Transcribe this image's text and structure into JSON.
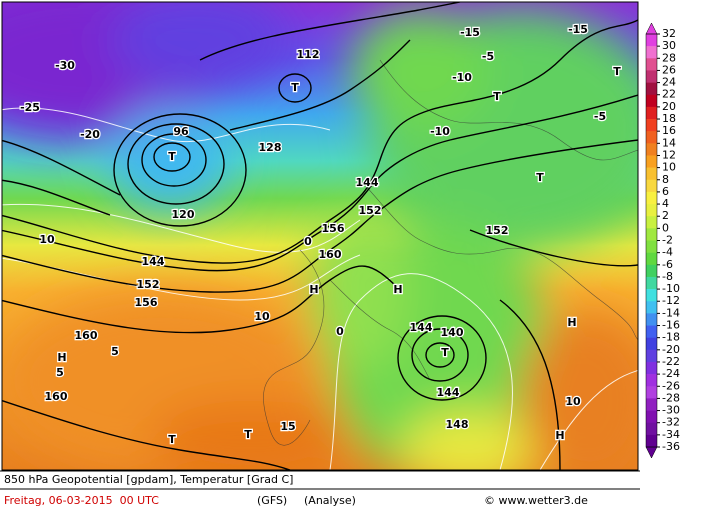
{
  "legend": {
    "labels": [
      32,
      30,
      28,
      26,
      24,
      22,
      20,
      18,
      16,
      14,
      12,
      10,
      8,
      6,
      4,
      2,
      0,
      -2,
      -4,
      -6,
      -8,
      -10,
      -12,
      -14,
      -16,
      -18,
      -20,
      -22,
      -24,
      -26,
      -28,
      -30,
      -32,
      -34,
      -36
    ],
    "colors": [
      "#e040e0",
      "#f070d0",
      "#e05090",
      "#c03070",
      "#a01040",
      "#c00020",
      "#e02020",
      "#f04020",
      "#f06020",
      "#f08020",
      "#f8a020",
      "#f8c030",
      "#f8d840",
      "#f8f040",
      "#e8f040",
      "#c8f040",
      "#a0e840",
      "#80e040",
      "#60d840",
      "#40d060",
      "#40d8a0",
      "#40e0e0",
      "#40c0f0",
      "#4090f0",
      "#4060f0",
      "#4040e0",
      "#6040e0",
      "#8030e0",
      "#a030e0",
      "#b040e0",
      "#9020c0",
      "#8010b0",
      "#7010a0",
      "#600090"
    ]
  },
  "map_labels": [
    "T",
    "T",
    "T",
    "T",
    "T",
    "T",
    "T",
    "T",
    "H",
    "H",
    "H",
    "H",
    "H",
    "144",
    "144",
    "144",
    "144",
    "152",
    "152",
    "152",
    "160",
    "160",
    "160",
    "156",
    "156",
    "148",
    "140",
    "128",
    "120",
    "112",
    "96",
    "-10",
    "-10",
    "-5",
    "-5",
    "-15",
    "-15",
    "-20",
    "-25",
    "-30",
    "10",
    "10",
    "10",
    "5",
    "5",
    "0",
    "0",
    "15"
  ],
  "footer": {
    "title": "850 hPa Geopotential [gpdam], Temperatur [Grad C]",
    "date": "Freitag, 06-03-2015  00 UTC",
    "model": "(GFS)",
    "run": "(Analyse)",
    "credit": "© www.wetter3.de"
  }
}
